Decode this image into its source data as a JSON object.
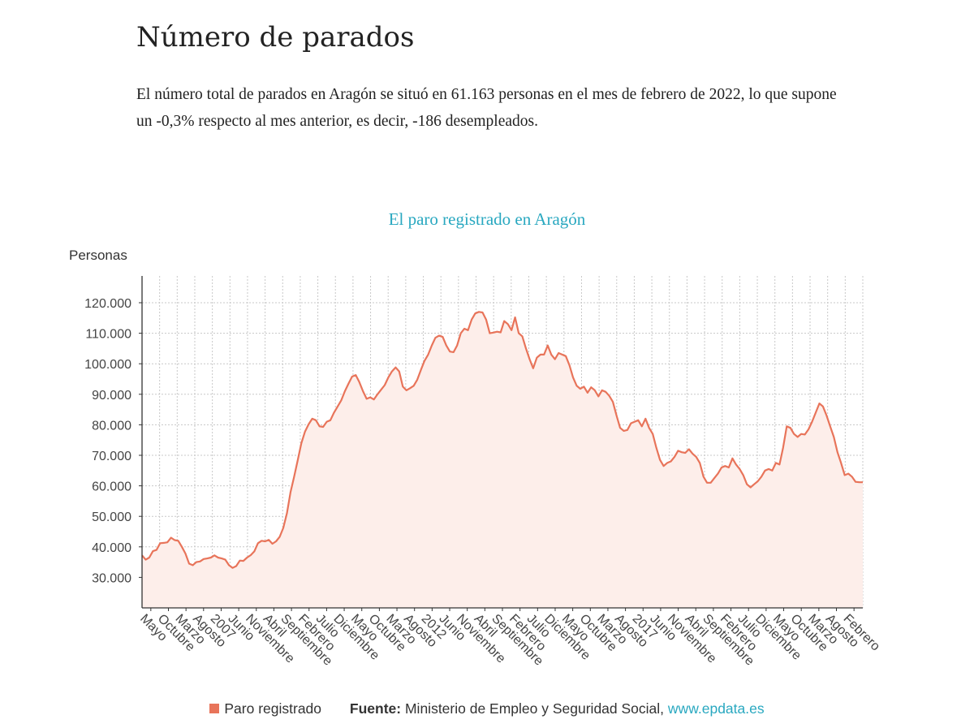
{
  "heading": "Número de parados",
  "intro": "El número total de parados en Aragón se situó en 61.163 personas en el mes de febrero de 2022, lo que supone un -0,3% respecto al mes anterior, es decir, -186 desempleados.",
  "footer": {
    "legend_label": "Paro registrado",
    "source_label": "Fuente:",
    "source_text": "Ministerio de Empleo y Seguridad Social,",
    "source_link": "www.epdata.es"
  },
  "chart_data": {
    "type": "area",
    "title": "El paro registrado en Aragón",
    "ylabel": "Personas",
    "ylim": [
      20000,
      130000
    ],
    "yticks": [
      30000,
      40000,
      50000,
      60000,
      70000,
      80000,
      90000,
      100000,
      110000,
      120000
    ],
    "ytick_labels": [
      "30.000",
      "40.000",
      "50.000",
      "60.000",
      "70.000",
      "80.000",
      "90.000",
      "100.000",
      "110.000",
      "120.000"
    ],
    "xtick_labels": [
      "Mayo",
      "Octubre",
      "Marzo",
      "Agosto",
      "2007",
      "Junio",
      "Noviembre",
      "Abril",
      "Septiembre",
      "Febrero",
      "Julio",
      "Diciembre",
      "Mayo",
      "Octubre",
      "Marzo",
      "Agosto",
      "2012",
      "Junio",
      "Noviembre",
      "Abril",
      "Septiembre",
      "Febrero",
      "Julio",
      "Diciembre",
      "Mayo",
      "Octubre",
      "Marzo",
      "Agosto",
      "2017",
      "Junio",
      "Noviembre",
      "Abril",
      "Septiembre",
      "Febrero",
      "Julio",
      "Diciembre",
      "Mayo",
      "Octubre",
      "Marzo",
      "Agosto",
      "Febrero"
    ],
    "grid": true,
    "colors": {
      "line": "#e8745a",
      "fill": "#fdeeea",
      "grid": "#c8c8c8",
      "title": "#29a8c0"
    },
    "series": [
      {
        "name": "Paro registrado",
        "values": [
          37200,
          35800,
          36500,
          38600,
          39000,
          41200,
          41300,
          41500,
          43000,
          42200,
          42000,
          40000,
          37800,
          34500,
          34000,
          35000,
          35200,
          36000,
          36200,
          36500,
          37200,
          36500,
          36200,
          35800,
          34000,
          33100,
          33700,
          35500,
          35400,
          36500,
          37300,
          38500,
          41200,
          42000,
          41800,
          42300,
          41000,
          41800,
          43300,
          46200,
          51000,
          58000,
          63000,
          68500,
          74000,
          77800,
          80200,
          82000,
          81500,
          79500,
          79300,
          81000,
          81500,
          84000,
          86000,
          88000,
          91000,
          93500,
          95800,
          96300,
          94000,
          91000,
          88500,
          89000,
          88300,
          90000,
          91500,
          93000,
          95500,
          97500,
          98800,
          97500,
          92500,
          91300,
          92000,
          92800,
          94800,
          98000,
          101000,
          103000,
          106000,
          108500,
          109200,
          108800,
          106000,
          104000,
          103800,
          106000,
          110000,
          111500,
          111000,
          114500,
          116500,
          117000,
          116800,
          114500,
          110000,
          110200,
          110500,
          110300,
          114000,
          113000,
          111000,
          115200,
          110000,
          109000,
          105000,
          101500,
          98500,
          102000,
          103000,
          103000,
          106000,
          103000,
          101500,
          103500,
          103000,
          102500,
          99500,
          95500,
          92800,
          91800,
          92500,
          90500,
          92300,
          91300,
          89300,
          91300,
          90800,
          89500,
          87500,
          83000,
          79000,
          78000,
          78300,
          80500,
          81000,
          81500,
          79500,
          82000,
          79000,
          77000,
          72500,
          68500,
          66500,
          67500,
          68000,
          69500,
          71500,
          71000,
          70800,
          72000,
          70500,
          69500,
          67500,
          63000,
          61000,
          61000,
          62500,
          64000,
          66000,
          66500,
          66000,
          69000,
          67000,
          65500,
          63500,
          60500,
          59500,
          60500,
          61500,
          63000,
          65000,
          65500,
          65000,
          67500,
          67000,
          72500,
          79500,
          79000,
          77000,
          76000,
          77000,
          76800,
          78500,
          81000,
          84000,
          87000,
          86000,
          83000,
          79500,
          76000,
          71000,
          67500,
          63500,
          64000,
          63000,
          61300,
          61200,
          61163
        ]
      }
    ]
  }
}
